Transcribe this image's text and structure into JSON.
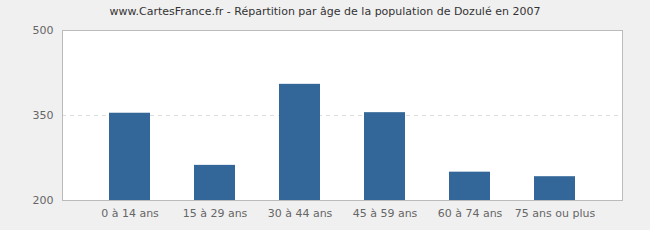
{
  "chart_data": {
    "type": "bar",
    "title": "www.CartesFrance.fr - Répartition par âge de la population de Dozulé en 2007",
    "categories": [
      "0 à 14 ans",
      "15 à 29 ans",
      "30 à 44 ans",
      "45 à 59 ans",
      "60 à 74 ans",
      "75 ans ou plus"
    ],
    "values": [
      354,
      262,
      405,
      355,
      250,
      242
    ],
    "color": "#336699",
    "ylim": [
      200,
      500
    ],
    "yticks": [
      200,
      350,
      500
    ],
    "grid": true
  }
}
